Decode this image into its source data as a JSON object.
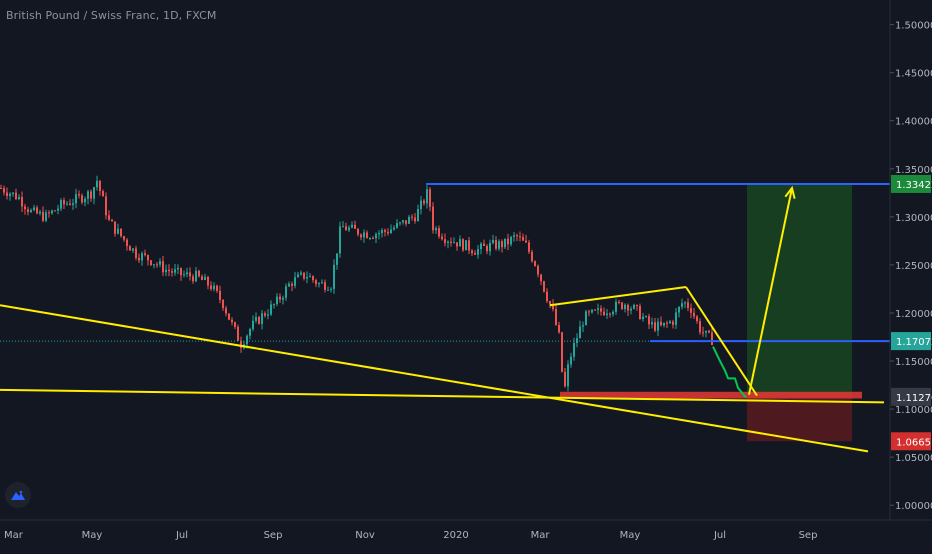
{
  "header": {
    "symbol_title": "British Pound / Swiss Franc, 1D, FXCM"
  },
  "colors": {
    "background": "#131722",
    "axis_text": "#b2b5be",
    "candle_up": "#26a69a",
    "candle_down": "#ef5350",
    "trendline": "#ffee00",
    "resistance": "#2962ff",
    "target_zone": "#1b5e20",
    "stop_zone": "#7f1d1d",
    "forecast_path": "#00c853",
    "last_price_line": "#26c6da"
  },
  "icons": {
    "logo": "tradingview-logo-icon"
  },
  "chart_data": {
    "type": "candlestick",
    "title": "British Pound / Swiss Franc, 1D, FXCM",
    "y_axis": {
      "min": 0.995,
      "max": 1.51,
      "ticks": [
        "1.50000",
        "1.45000",
        "1.40000",
        "1.35000",
        "1.30000",
        "1.25000",
        "1.20000",
        "1.15000",
        "1.10000",
        "1.05000",
        "1.00000"
      ]
    },
    "x_axis": {
      "labels": [
        "Mar",
        "May",
        "Jul",
        "Sep",
        "Nov",
        "2020",
        "Mar",
        "May",
        "Jul",
        "Sep"
      ]
    },
    "price_labels": [
      {
        "name": "target",
        "value": "1.33422",
        "color": "#1b8a3a"
      },
      {
        "name": "resistance",
        "value": "1.17072",
        "color": "#26a69a"
      },
      {
        "name": "current",
        "value": "1.11270",
        "color": "#363a45"
      },
      {
        "name": "stop",
        "value": "1.06651",
        "color": "#d32f2f"
      }
    ],
    "price_path": [
      [
        0,
        1.33
      ],
      [
        18,
        1.32
      ],
      [
        30,
        1.305
      ],
      [
        45,
        1.3
      ],
      [
        60,
        1.312
      ],
      [
        75,
        1.318
      ],
      [
        90,
        1.325
      ],
      [
        96,
        1.338
      ],
      [
        108,
        1.295
      ],
      [
        120,
        1.28
      ],
      [
        135,
        1.262
      ],
      [
        150,
        1.255
      ],
      [
        165,
        1.245
      ],
      [
        180,
        1.24
      ],
      [
        195,
        1.238
      ],
      [
        210,
        1.228
      ],
      [
        222,
        1.21
      ],
      [
        232,
        1.185
      ],
      [
        240,
        1.168
      ],
      [
        250,
        1.185
      ],
      [
        262,
        1.198
      ],
      [
        275,
        1.21
      ],
      [
        290,
        1.232
      ],
      [
        305,
        1.24
      ],
      [
        318,
        1.23
      ],
      [
        330,
        1.23
      ],
      [
        340,
        1.29
      ],
      [
        355,
        1.285
      ],
      [
        370,
        1.282
      ],
      [
        385,
        1.285
      ],
      [
        400,
        1.292
      ],
      [
        415,
        1.302
      ],
      [
        422,
        1.315
      ],
      [
        427,
        1.326
      ],
      [
        432,
        1.29
      ],
      [
        445,
        1.278
      ],
      [
        460,
        1.272
      ],
      [
        475,
        1.265
      ],
      [
        490,
        1.27
      ],
      [
        505,
        1.272
      ],
      [
        515,
        1.28
      ],
      [
        525,
        1.27
      ],
      [
        535,
        1.25
      ],
      [
        545,
        1.22
      ],
      [
        552,
        1.2
      ],
      [
        558,
        1.175
      ],
      [
        563,
        1.115
      ],
      [
        568,
        1.15
      ],
      [
        575,
        1.172
      ],
      [
        583,
        1.195
      ],
      [
        595,
        1.2
      ],
      [
        610,
        1.205
      ],
      [
        625,
        1.21
      ],
      [
        638,
        1.2
      ],
      [
        648,
        1.188
      ],
      [
        660,
        1.185
      ],
      [
        672,
        1.192
      ],
      [
        682,
        1.212
      ],
      [
        690,
        1.205
      ],
      [
        698,
        1.185
      ],
      [
        706,
        1.175
      ],
      [
        712,
        1.172
      ]
    ],
    "trendlines": [
      {
        "name": "long-term-support",
        "x1": 0,
        "y1": 1.208,
        "x2": 868,
        "y2": 1.056
      },
      {
        "name": "horizontal-support",
        "x1": 0,
        "y1": 1.12,
        "x2": 884,
        "y2": 1.107
      },
      {
        "name": "wedge-top",
        "x1": 550,
        "y1": 1.208,
        "x2": 686,
        "y2": 1.227
      },
      {
        "name": "wedge-down",
        "x1": 686,
        "y1": 1.227,
        "x2": 757,
        "y2": 1.114
      },
      {
        "name": "target-arrow",
        "x1": 749,
        "y1": 1.115,
        "x2": 792,
        "y2": 1.33
      }
    ],
    "levels": [
      {
        "name": "resistance-line-top",
        "value": 1.33422,
        "x_start": 426,
        "x_end": 890
      },
      {
        "name": "resistance-line-mid",
        "value": 1.17072,
        "x_start": 650,
        "x_end": 890
      }
    ],
    "zones": [
      {
        "name": "target-zone",
        "top": 1.33422,
        "bottom": 1.114,
        "x_start": 747,
        "x_end": 852
      },
      {
        "name": "stop-zone",
        "top": 1.114,
        "bottom": 1.06651,
        "x_start": 747,
        "x_end": 852
      },
      {
        "name": "support-zone-red",
        "top": 1.118,
        "bottom": 1.111,
        "x_start": 560,
        "x_end": 862
      }
    ],
    "forecast_path": [
      [
        713,
        1.165
      ],
      [
        720,
        1.15
      ],
      [
        725,
        1.14
      ],
      [
        728,
        1.132
      ],
      [
        735,
        1.132
      ],
      [
        738,
        1.122
      ],
      [
        746,
        1.112
      ]
    ],
    "legend": "none",
    "grid": false
  }
}
